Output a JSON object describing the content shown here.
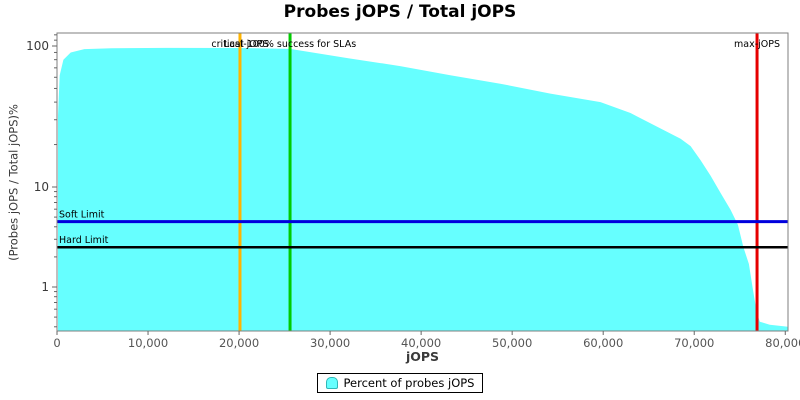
{
  "chart_data": {
    "type": "area",
    "title": "Probes jOPS / Total jOPS",
    "xlabel": "jOPS",
    "ylabel": "(Probes jOPS / Total jOPS)%",
    "y_scale": "log",
    "xlim": [
      0,
      80300
    ],
    "ylim": [
      0.37,
      125
    ],
    "grid": false,
    "x_ticks": [
      {
        "v": 0,
        "label": "0"
      },
      {
        "v": 10000,
        "label": "10,000"
      },
      {
        "v": 20000,
        "label": "20,000"
      },
      {
        "v": 30000,
        "label": "30,000"
      },
      {
        "v": 40000,
        "label": "40,000"
      },
      {
        "v": 50000,
        "label": "50,000"
      },
      {
        "v": 60000,
        "label": "60,000"
      },
      {
        "v": 70000,
        "label": "70,000"
      },
      {
        "v": 80000,
        "label": "80,000"
      }
    ],
    "y_ticks": [
      {
        "v": 100,
        "label": "100"
      },
      {
        "v": 10,
        "label": "10"
      },
      {
        "v": 1,
        "label": "1"
      }
    ],
    "series": [
      {
        "name": "Percent of probes jOPS",
        "color": "#66FFFF",
        "points": [
          [
            110,
            32
          ],
          [
            300,
            62
          ],
          [
            700,
            80
          ],
          [
            1500,
            90
          ],
          [
            3000,
            95
          ],
          [
            6000,
            96.5
          ],
          [
            12000,
            97
          ],
          [
            20000,
            96.8
          ],
          [
            25600,
            95.3
          ],
          [
            32000,
            82
          ],
          [
            37700,
            72
          ],
          [
            43200,
            62
          ],
          [
            48700,
            54
          ],
          [
            54200,
            46
          ],
          [
            59700,
            40
          ],
          [
            63000,
            33.5
          ],
          [
            66300,
            26
          ],
          [
            68500,
            22
          ],
          [
            69600,
            19.5
          ],
          [
            70700,
            15.5
          ],
          [
            71800,
            12
          ],
          [
            72900,
            8.7
          ],
          [
            74000,
            5.9
          ],
          [
            74800,
            4.2
          ],
          [
            75400,
            2.5
          ],
          [
            76000,
            1.7
          ],
          [
            76400,
            1.0
          ],
          [
            76700,
            0.69
          ],
          [
            76900,
            0.55
          ],
          [
            77200,
            0.45
          ],
          [
            78300,
            0.42
          ],
          [
            80300,
            0.4
          ]
        ]
      }
    ],
    "vertical_markers": [
      {
        "label": "critical-jOPS",
        "x": 20100,
        "color": "#FFB400"
      },
      {
        "label": "Last 100% success for SLAs",
        "x": 25600,
        "color": "#00CC00"
      },
      {
        "label": "max-jOPS",
        "x": 76900,
        "color": "#E60000"
      }
    ],
    "horizontal_markers": [
      {
        "label": "Soft Limit",
        "y": 4.5,
        "color": "#0000DD"
      },
      {
        "label": "Hard Limit",
        "y": 2.5,
        "color": "#000000"
      }
    ],
    "legend": {
      "position": "bottom",
      "items": [
        {
          "label": "Percent of probes jOPS",
          "color": "#66FFFF"
        }
      ]
    }
  }
}
